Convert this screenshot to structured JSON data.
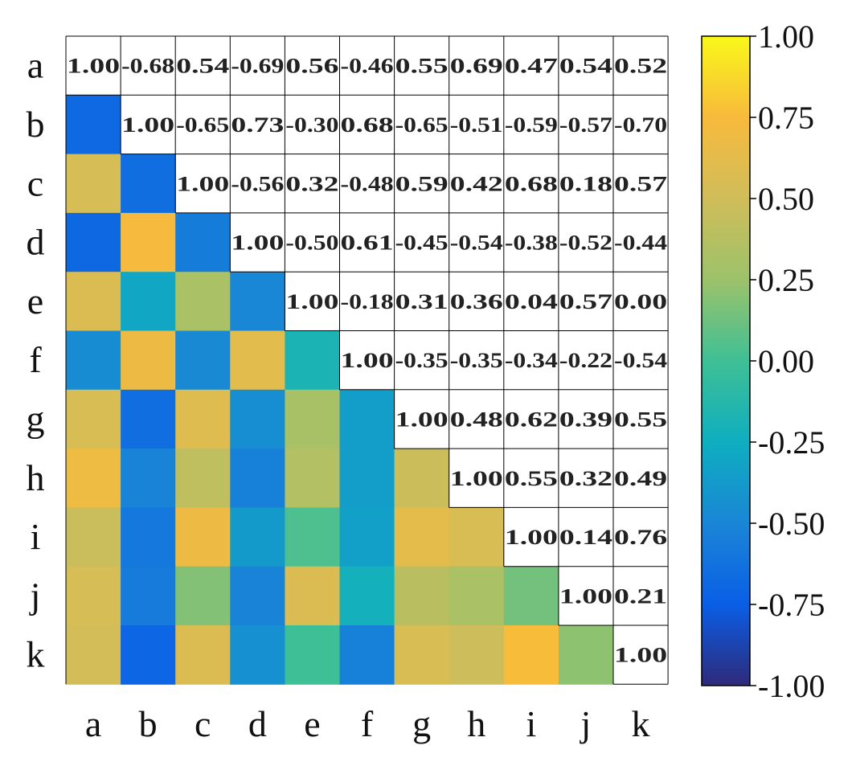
{
  "chart_data": {
    "type": "heatmap",
    "layout": "lower-triangle colored cells, upper-triangle numeric values",
    "title": "",
    "xlabel": "",
    "ylabel": "",
    "row_labels": [
      "a",
      "b",
      "c",
      "d",
      "e",
      "f",
      "g",
      "h",
      "i",
      "j",
      "k"
    ],
    "col_labels": [
      "a",
      "b",
      "c",
      "d",
      "e",
      "f",
      "g",
      "h",
      "i",
      "j",
      "k"
    ],
    "values": [
      [
        "1.00",
        "-0.68",
        "0.54",
        "-0.69",
        "0.56",
        "-0.46",
        "0.55",
        "0.69",
        "0.47",
        "0.54",
        "0.52"
      ],
      [
        "-0.68",
        "1.00",
        "-0.65",
        "0.73",
        "-0.30",
        "0.68",
        "-0.65",
        "-0.51",
        "-0.59",
        "-0.57",
        "-0.70"
      ],
      [
        "0.54",
        "-0.65",
        "1.00",
        "-0.56",
        "0.32",
        "-0.48",
        "0.59",
        "0.42",
        "0.68",
        "0.18",
        "0.57"
      ],
      [
        "-0.69",
        "0.73",
        "-0.56",
        "1.00",
        "-0.50",
        "0.61",
        "-0.45",
        "-0.54",
        "-0.38",
        "-0.52",
        "-0.44"
      ],
      [
        "0.56",
        "-0.30",
        "0.32",
        "-0.50",
        "1.00",
        "-0.18",
        "0.31",
        "0.36",
        "0.04",
        "0.57",
        "0.00"
      ],
      [
        "-0.46",
        "0.68",
        "-0.48",
        "0.61",
        "-0.18",
        "1.00",
        "-0.35",
        "-0.35",
        "-0.34",
        "-0.22",
        "-0.54"
      ],
      [
        "0.55",
        "-0.65",
        "0.59",
        "-0.45",
        "0.31",
        "-0.35",
        "1.00",
        "0.48",
        "0.62",
        "0.39",
        "0.55"
      ],
      [
        "0.69",
        "-0.51",
        "0.42",
        "-0.54",
        "0.36",
        "-0.35",
        "0.48",
        "1.00",
        "0.55",
        "0.32",
        "0.49"
      ],
      [
        "0.47",
        "-0.59",
        "0.68",
        "-0.38",
        "0.04",
        "-0.34",
        "0.62",
        "0.55",
        "1.00",
        "0.14",
        "0.76"
      ],
      [
        "0.54",
        "-0.57",
        "0.18",
        "-0.52",
        "0.57",
        "-0.22",
        "0.39",
        "0.32",
        "0.14",
        "1.00",
        "0.21"
      ],
      [
        "0.52",
        "-0.70",
        "0.57",
        "-0.44",
        "0.00",
        "-0.54",
        "0.55",
        "0.49",
        "0.76",
        "0.21",
        "1.00"
      ]
    ],
    "colorbar": {
      "range": [
        -1.0,
        1.0
      ],
      "ticks": [
        "1.00",
        "0.75",
        "0.50",
        "0.25",
        "0.00",
        "-0.25",
        "-0.50",
        "-0.75",
        "-1.00"
      ],
      "colormap_stops": [
        "#2e2a7a",
        "#0a5ee6",
        "#1a86d6",
        "#0eaec0",
        "#3fbf95",
        "#9cc26a",
        "#d0bd5a",
        "#f8ba3c",
        "#f9f81a"
      ]
    },
    "grid": true,
    "legend": "colorbar-right"
  }
}
